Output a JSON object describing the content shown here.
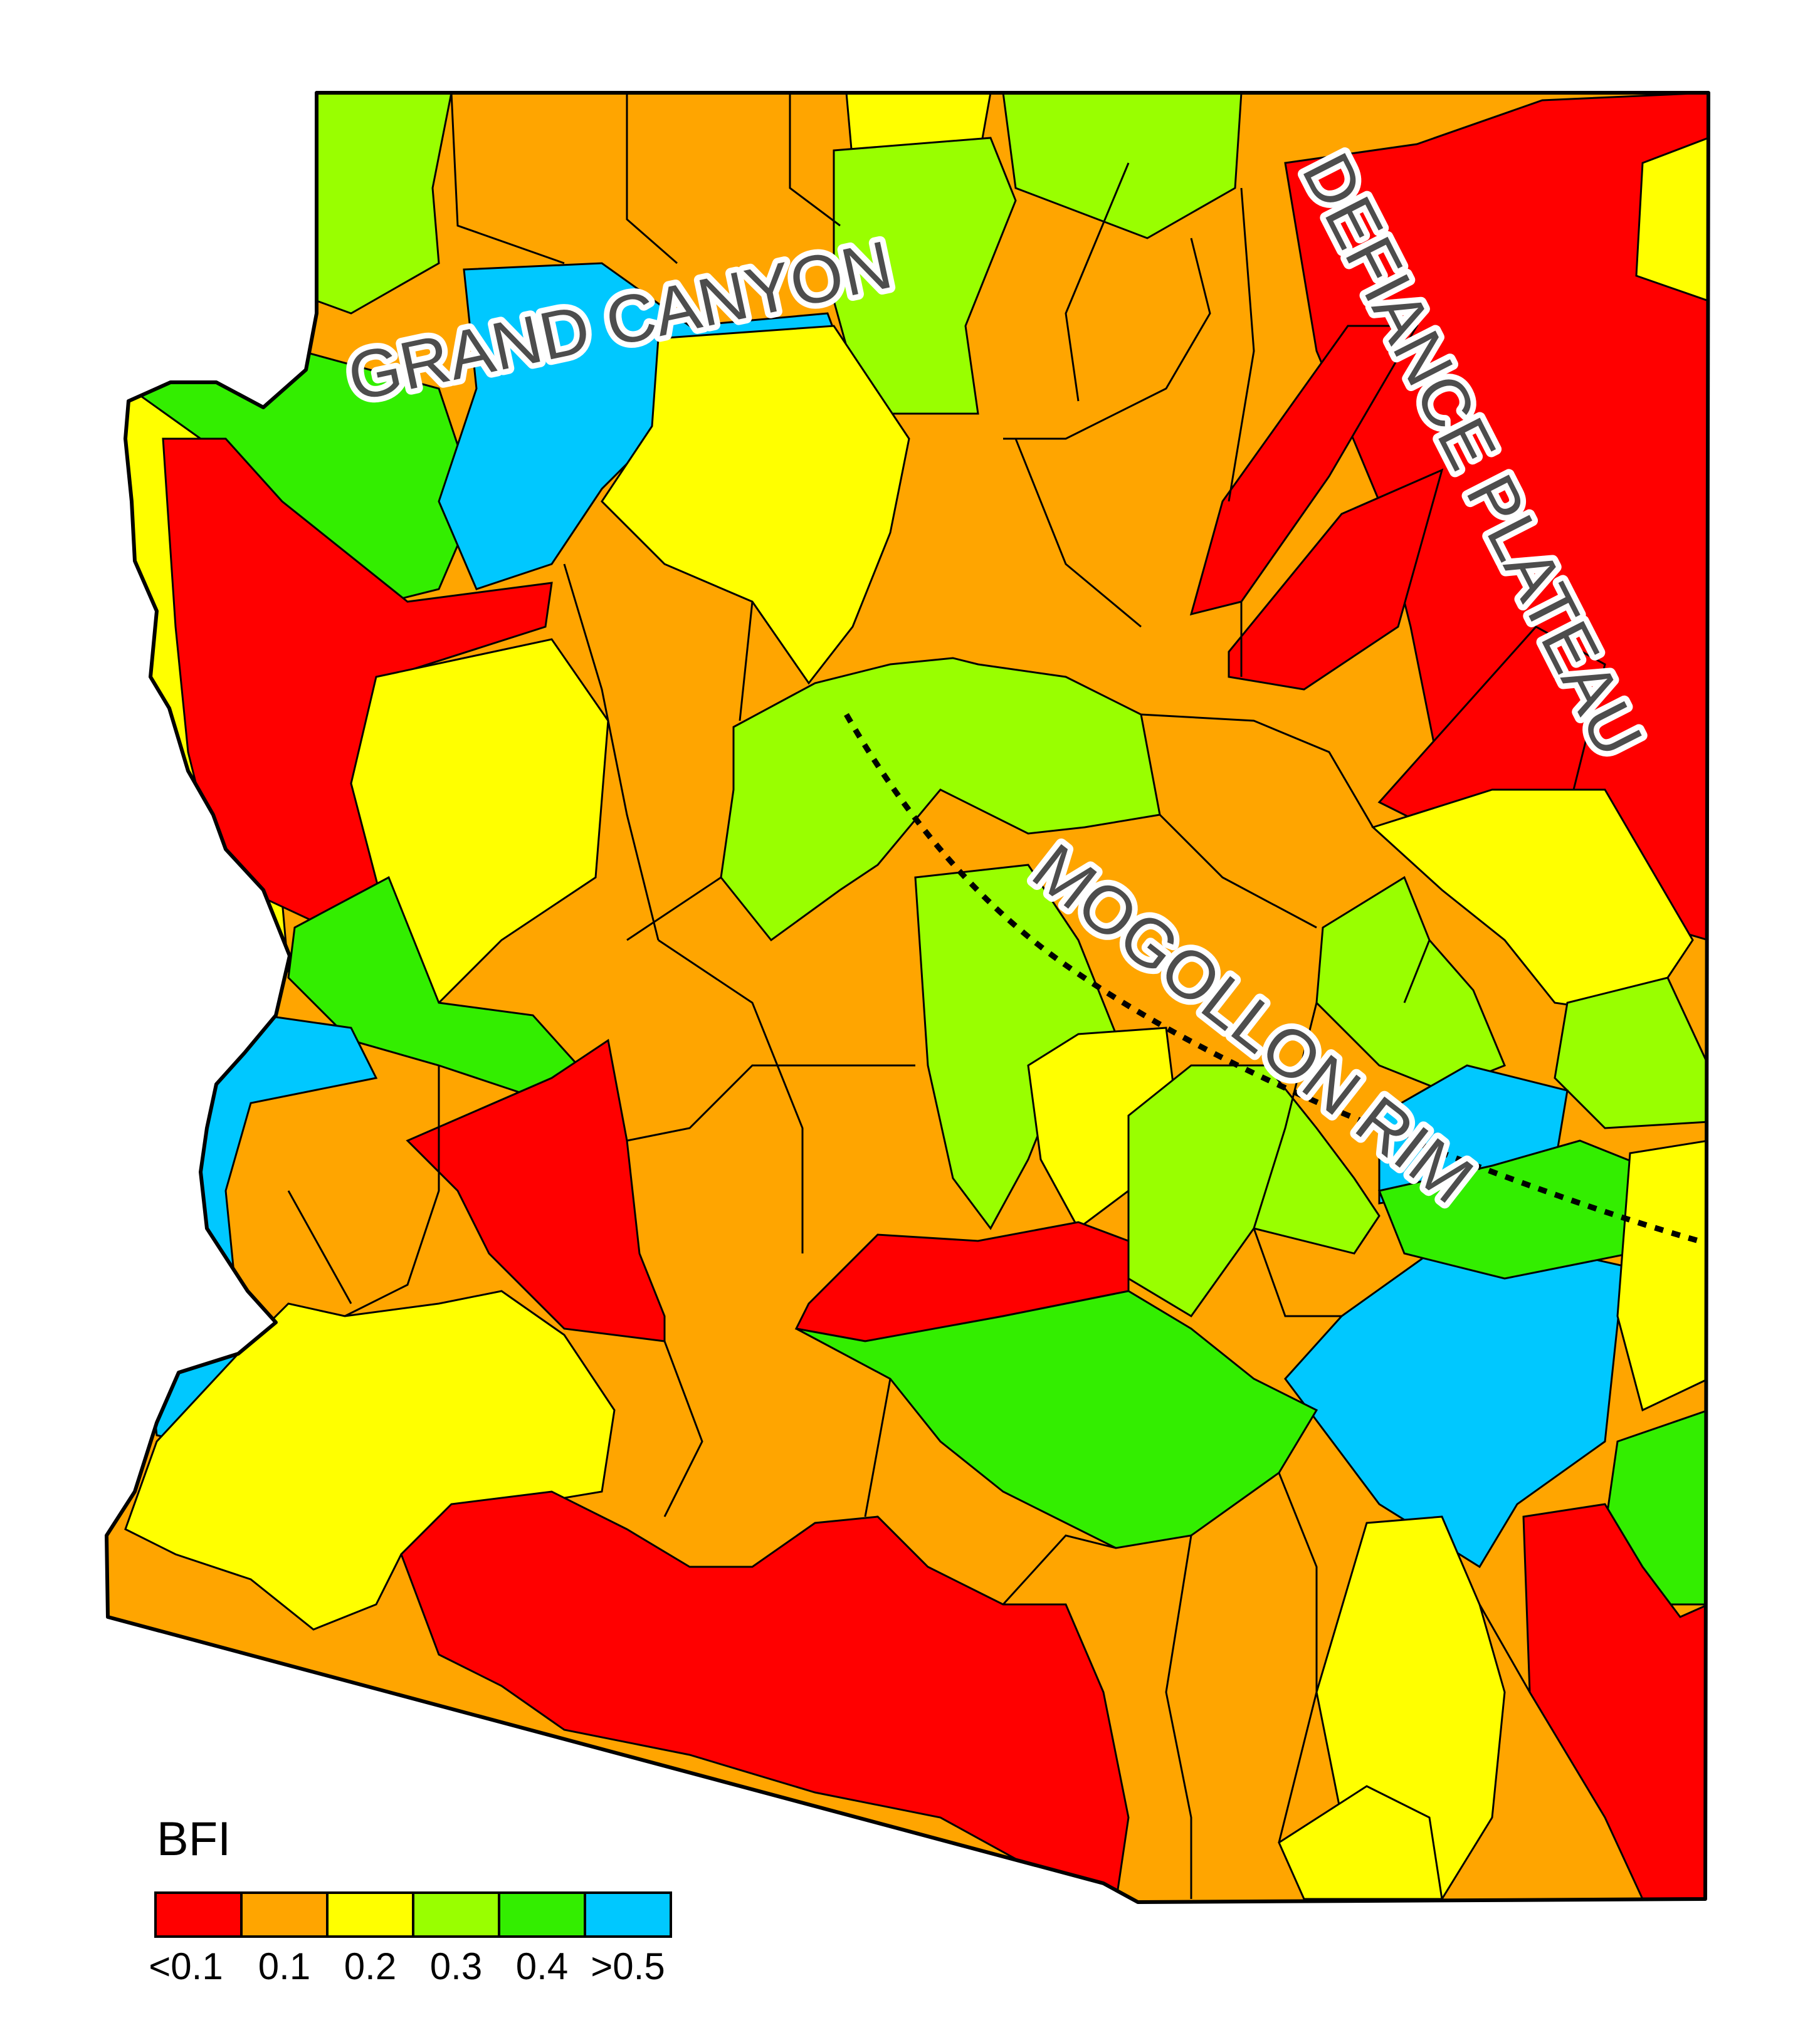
{
  "labels": {
    "grand_canyon": "GRAND CANYON",
    "defiance_plateau": "DEFIANCE PLATEAU",
    "mogollon_rim": "MOGOLLON RIM"
  },
  "legend": {
    "title": "BFI",
    "classes": [
      {
        "label": "<0.1",
        "color": "#ff0000"
      },
      {
        "label": "0.1",
        "color": "#ffa500"
      },
      {
        "label": "0.2",
        "color": "#ffff00"
      },
      {
        "label": "0.3",
        "color": "#99ff00"
      },
      {
        "label": "0.4",
        "color": "#33ee00"
      },
      {
        "label": ">0.5",
        "color": "#00c8ff"
      }
    ]
  }
}
